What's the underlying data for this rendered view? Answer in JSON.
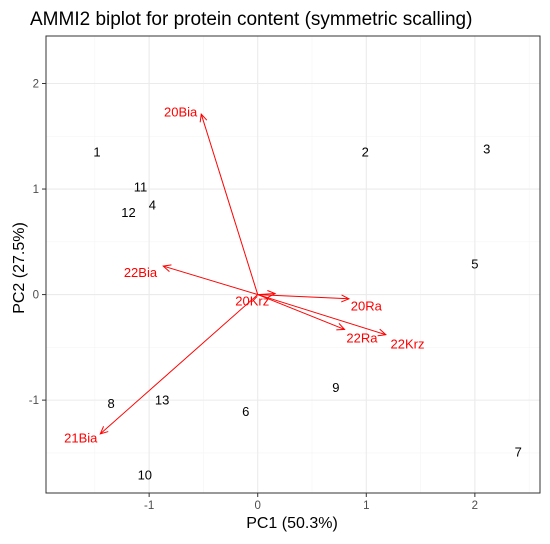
{
  "chart_data": {
    "type": "scatter",
    "title": "AMMI2 biplot for protein content (symmetric scalling)",
    "xlabel": "PC1 (50.3%)",
    "ylabel": "PC2 (27.5%)",
    "xlim": [
      -1.95,
      2.6
    ],
    "ylim": [
      -1.88,
      2.45
    ],
    "x_ticks": [
      -1,
      0,
      1,
      2
    ],
    "y_ticks": [
      -1,
      0,
      1,
      2
    ],
    "x_tick_labels": [
      "-1",
      "0",
      "1",
      "2"
    ],
    "y_tick_labels": [
      "-1",
      "0",
      "1",
      "2"
    ],
    "grid": true,
    "colors": {
      "genotype": "#000000",
      "environment": "#ff0000",
      "grid_major": "#ebebeb",
      "grid_minor": "#f5f5f5",
      "panel_border": "#333333",
      "tick_label": "#4d4d4d"
    },
    "genotypes": [
      {
        "label": "1",
        "x": -1.48,
        "y": 1.35
      },
      {
        "label": "2",
        "x": 0.99,
        "y": 1.35
      },
      {
        "label": "3",
        "x": 2.11,
        "y": 1.38
      },
      {
        "label": "4",
        "x": -0.97,
        "y": 0.85
      },
      {
        "label": "5",
        "x": 2.0,
        "y": 0.29
      },
      {
        "label": "6",
        "x": -0.11,
        "y": -1.11
      },
      {
        "label": "7",
        "x": 2.4,
        "y": -1.49
      },
      {
        "label": "9",
        "x": 0.72,
        "y": -0.88
      },
      {
        "label": "8",
        "x": -1.35,
        "y": -1.03
      },
      {
        "label": "10",
        "x": -1.04,
        "y": -1.71
      },
      {
        "label": "11",
        "x": -1.08,
        "y": 1.02
      },
      {
        "label": "12",
        "x": -1.19,
        "y": 0.78
      },
      {
        "label": "13",
        "x": -0.88,
        "y": -1.0
      }
    ],
    "environments": [
      {
        "label": "20Bia",
        "x": -0.52,
        "y": 1.71,
        "label_x": -0.71,
        "label_y": 1.73,
        "anchor": "middle"
      },
      {
        "label": "22Bia",
        "x": -0.87,
        "y": 0.27,
        "label_x": -1.08,
        "label_y": 0.21,
        "anchor": "middle"
      },
      {
        "label": "20Krz",
        "x": 0.16,
        "y": 0.01,
        "label_x": -0.05,
        "label_y": -0.06,
        "anchor": "middle"
      },
      {
        "label": "20Ra",
        "x": 0.84,
        "y": -0.04,
        "label_x": 1.0,
        "label_y": -0.11,
        "anchor": "middle"
      },
      {
        "label": "22Ra",
        "x": 0.8,
        "y": -0.33,
        "label_x": 0.96,
        "label_y": -0.41,
        "anchor": "middle"
      },
      {
        "label": "22Krz",
        "x": 1.18,
        "y": -0.38,
        "label_x": 1.38,
        "label_y": -0.47,
        "anchor": "middle"
      },
      {
        "label": "21Bia",
        "x": -1.45,
        "y": -1.32,
        "label_x": -1.63,
        "label_y": -1.36,
        "anchor": "middle"
      }
    ]
  }
}
